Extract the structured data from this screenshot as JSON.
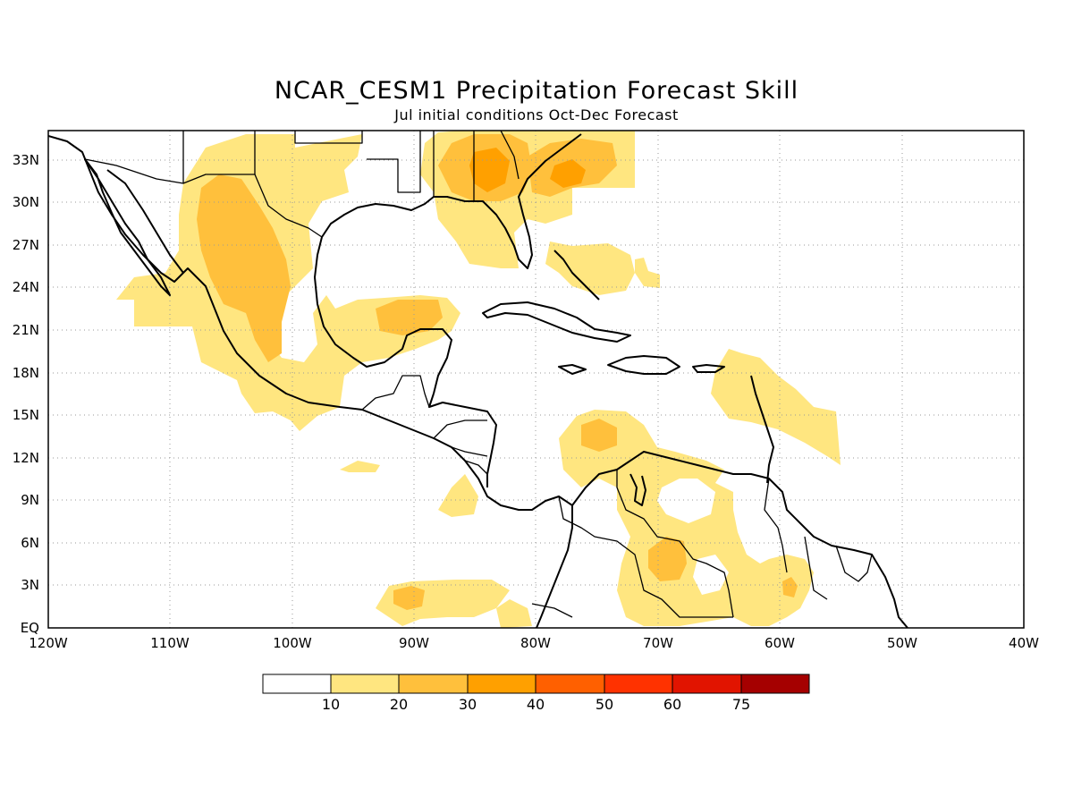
{
  "title": "NCAR_CESM1 Precipitation Forecast Skill",
  "subtitle": "Jul initial conditions  Oct-Dec Forecast",
  "map": {
    "lon_ticks": [
      "120W",
      "110W",
      "100W",
      "90W",
      "80W",
      "70W",
      "60W",
      "50W",
      "40W"
    ],
    "lat_ticks": [
      "EQ",
      "3N",
      "6N",
      "9N",
      "12N",
      "15N",
      "18N",
      "21N",
      "24N",
      "27N",
      "30N",
      "33N"
    ]
  },
  "colorbar": {
    "labels": [
      "10",
      "20",
      "30",
      "40",
      "50",
      "60",
      "75"
    ],
    "colors": [
      "#ffffff",
      "#ffe680",
      "#ffc03c",
      "#ffa000",
      "#ff6000",
      "#ff3200",
      "#e11400",
      "#a50000"
    ]
  },
  "shading_colors": {
    "band_10_20": "#ffe680",
    "band_20_30": "#ffc03c",
    "band_30_40": "#ffa000"
  }
}
